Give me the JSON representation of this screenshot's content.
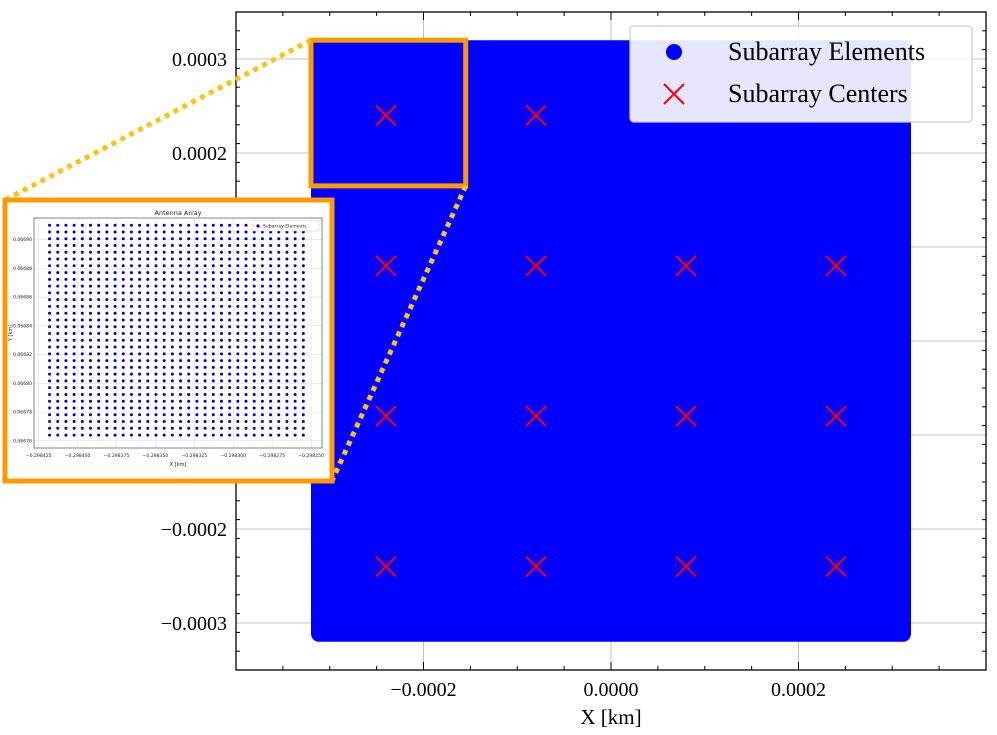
{
  "chart_data": [
    {
      "type": "scatter",
      "title": "",
      "xlabel": "X [km]",
      "ylabel": "",
      "xlim": [
        -0.0004,
        0.0004
      ],
      "ylim": [
        -0.00035,
        0.00035
      ],
      "xticks": [
        -0.0002,
        0.0,
        0.0002
      ],
      "xtick_labels": [
        "−0.0002",
        "0.0000",
        "0.0002"
      ],
      "yticks": [
        -0.0003,
        -0.0002,
        0.0002,
        0.0003
      ],
      "ytick_labels": [
        "−0.0003",
        "−0.0002",
        "0.0002",
        "0.0003"
      ],
      "grid": true,
      "legend_position": "top-right",
      "series": [
        {
          "name": "Subarray Elements",
          "marker": "circle",
          "color": "#0000ff",
          "extent": {
            "x": [
              -0.00032,
              0.00032
            ],
            "y": [
              -0.00032,
              0.00032
            ]
          }
        },
        {
          "name": "Subarray Centers",
          "marker": "x",
          "color": "#ff0000",
          "x": [
            -0.00024,
            -8e-05,
            -0.00024,
            -8e-05,
            8e-05,
            0.00024,
            -0.00024,
            -8e-05,
            8e-05,
            0.00024,
            -0.00024,
            -8e-05,
            8e-05,
            0.00024
          ],
          "y": [
            0.00024,
            0.00024,
            8e-05,
            8e-05,
            8e-05,
            8e-05,
            -8e-05,
            -8e-05,
            -8e-05,
            -8e-05,
            -0.00024,
            -0.00024,
            -0.00024,
            -0.00024
          ]
        }
      ],
      "zoom_region": {
        "x": [
          -0.00032,
          -0.000155
        ],
        "y": [
          0.000165,
          0.00032
        ]
      }
    },
    {
      "type": "scatter",
      "title": "Antenna Array",
      "xlabel": "X [km]",
      "ylabel": "Y [km]",
      "xlim": [
        -0.298428,
        -0.298243
      ],
      "ylim": [
        0.066755,
        0.066915
      ],
      "xtick_labels": [
        "−0.298425",
        "−0.298400",
        "−0.298375",
        "−0.298350",
        "−0.298325",
        "−0.298300",
        "−0.298275",
        "−0.298250"
      ],
      "xticks": [
        -0.298425,
        -0.2984,
        -0.298375,
        -0.29835,
        -0.298325,
        -0.2983,
        -0.298275,
        -0.29825
      ],
      "ytick_labels": [
        "0.06676",
        "0.06678",
        "0.06680",
        "0.06682",
        "0.06684",
        "0.06686",
        "0.06688",
        "0.06690"
      ],
      "yticks": [
        0.06676,
        0.06678,
        0.0668,
        0.06682,
        0.06684,
        0.06686,
        0.06688,
        0.0669
      ],
      "legend": [
        "Subarray Elements"
      ],
      "legend_position": "top-right",
      "series": [
        {
          "name": "Subarray Elements",
          "marker": "dot",
          "color": "#0000cc",
          "grid_columns": 32,
          "grid_rows": 32,
          "extent": {
            "x": [
              -0.298418,
              -0.298255
            ],
            "y": [
              0.066764,
              0.06691
            ]
          }
        }
      ]
    }
  ]
}
